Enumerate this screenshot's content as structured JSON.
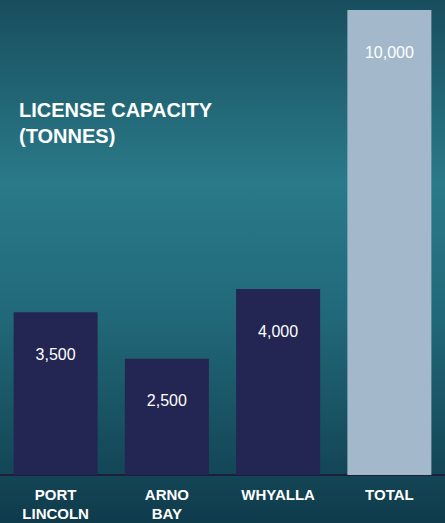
{
  "chart_data": {
    "type": "bar",
    "title": "LICENSE CAPACITY (TONNES)",
    "categories": [
      "PORT LINCOLN",
      "ARNO BAY",
      "WHYALLA",
      "TOTAL"
    ],
    "values": [
      3500,
      2500,
      4000,
      10000
    ],
    "value_labels": [
      "3,500",
      "2,500",
      "4,000",
      "10,000"
    ],
    "colors": [
      "#232552",
      "#232552",
      "#232552",
      "#a3b9cb"
    ],
    "ylim": [
      0,
      10000
    ],
    "grid": false,
    "data_labels": true,
    "tick_labels": "x"
  }
}
